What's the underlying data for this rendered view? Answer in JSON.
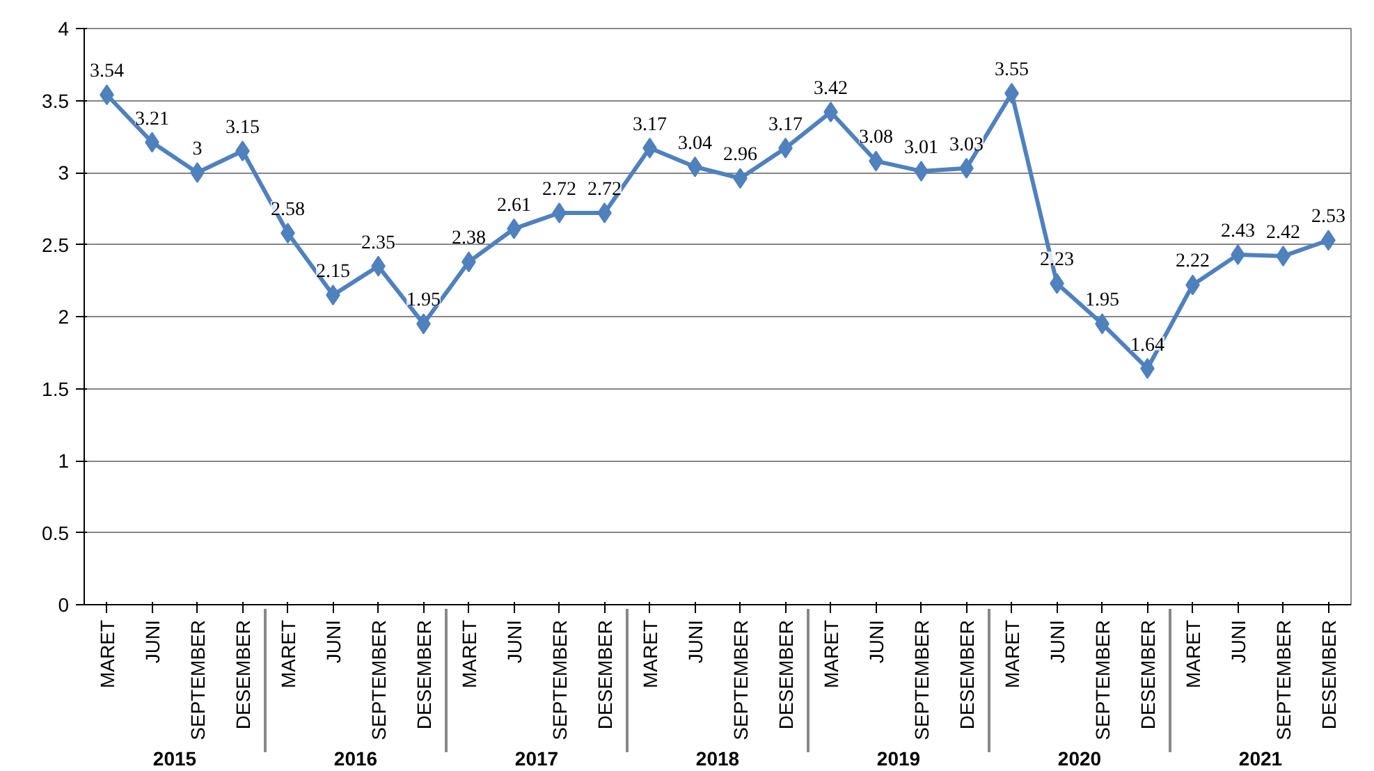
{
  "chart_data": {
    "type": "line",
    "categories": [
      "MARET",
      "JUNI",
      "SEPTEMBER",
      "DESEMBER",
      "MARET",
      "JUNI",
      "SEPTEMBER",
      "DESEMBER",
      "MARET",
      "JUNI",
      "SEPTEMBER",
      "DESEMBER",
      "MARET",
      "JUNI",
      "SEPTEMBER",
      "DESEMBER",
      "MARET",
      "JUNI",
      "SEPTEMBER",
      "DESEMBER",
      "MARET",
      "JUNI",
      "SEPTEMBER",
      "DESEMBER",
      "MARET",
      "JUNI",
      "SEPTEMBER",
      "DESEMBER"
    ],
    "annotations": [
      "2015",
      "2016",
      "2017",
      "2018",
      "2019",
      "2020",
      "2021"
    ],
    "series": [
      {
        "color": "#4f81bd",
        "values": [
          3.54,
          3.21,
          3,
          3.15,
          2.58,
          2.15,
          2.35,
          1.95,
          2.38,
          2.61,
          2.72,
          2.72,
          3.17,
          3.04,
          2.96,
          3.17,
          3.42,
          3.08,
          3.01,
          3.03,
          3.55,
          2.23,
          1.95,
          1.64,
          2.22,
          2.43,
          2.42,
          2.53
        ]
      }
    ],
    "ylim": [
      0,
      4
    ],
    "yticks": [
      0,
      0.5,
      1,
      1.5,
      2,
      2.5,
      3,
      3.5,
      4
    ],
    "grid": "y",
    "marker": "diamond",
    "line_style": "solid",
    "data_labels": true
  }
}
